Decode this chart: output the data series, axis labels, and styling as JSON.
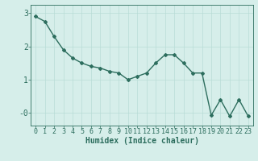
{
  "x": [
    0,
    1,
    2,
    3,
    4,
    5,
    6,
    7,
    8,
    9,
    10,
    11,
    12,
    13,
    14,
    15,
    16,
    17,
    18,
    19,
    20,
    21,
    22,
    23
  ],
  "y": [
    2.9,
    2.75,
    2.3,
    1.9,
    1.65,
    1.5,
    1.4,
    1.35,
    1.25,
    1.2,
    1.0,
    1.1,
    1.2,
    1.5,
    1.75,
    1.75,
    1.5,
    1.2,
    1.2,
    -0.07,
    0.4,
    -0.1,
    0.4,
    -0.1
  ],
  "line_color": "#2d6e5e",
  "marker": "D",
  "marker_size": 2.0,
  "line_width": 1.0,
  "xlabel": "Humidex (Indice chaleur)",
  "xlabel_fontsize": 7,
  "ytick_labels": [
    "3",
    "2",
    "1",
    "-0"
  ],
  "ytick_values": [
    3,
    2,
    1,
    0
  ],
  "ylim": [
    -0.38,
    3.25
  ],
  "xlim": [
    -0.5,
    23.5
  ],
  "bg_color": "#d6eeea",
  "grid_color": "#b8dcd6",
  "tick_fontsize": 6,
  "xtick_labels": [
    "0",
    "1",
    "2",
    "3",
    "4",
    "5",
    "6",
    "7",
    "8",
    "9",
    "10",
    "11",
    "12",
    "13",
    "14",
    "15",
    "16",
    "17",
    "18",
    "19",
    "20",
    "21",
    "22",
    "23"
  ]
}
